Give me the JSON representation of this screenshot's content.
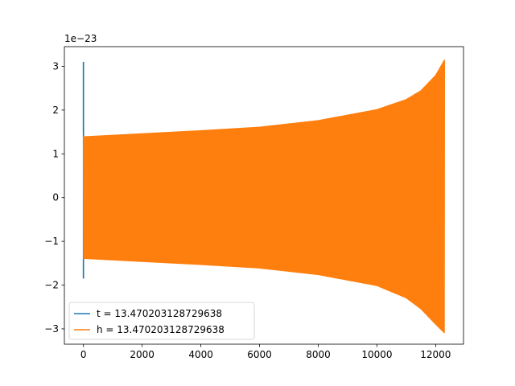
{
  "chart_data": {
    "type": "line",
    "title": "",
    "xlabel": "",
    "ylabel": "",
    "xlim": [
      -650,
      12950
    ],
    "ylim": [
      -3.35,
      3.45
    ],
    "y_offset_label": "1e−23",
    "x_ticks": [
      0,
      2000,
      4000,
      6000,
      8000,
      10000,
      12000
    ],
    "x_tick_labels": [
      "0",
      "2000",
      "4000",
      "6000",
      "8000",
      "10000",
      "12000"
    ],
    "y_ticks": [
      -3,
      -2,
      -1,
      0,
      1,
      2,
      3
    ],
    "y_tick_labels": [
      "−3",
      "−2",
      "−1",
      "0",
      "1",
      "2",
      "3"
    ],
    "grid": false,
    "legend_position": "lower-left",
    "series": [
      {
        "name": "t = 13.470203128729638",
        "color": "#1f77b4",
        "spike_x": 0,
        "spike_range": [
          -1.85,
          3.1
        ]
      },
      {
        "name": "h = 13.470203128729638",
        "color": "#ff7f0e",
        "x_range": [
          0,
          12300
        ],
        "envelope_x": [
          0,
          2000,
          4000,
          6000,
          8000,
          10000,
          11000,
          11500,
          12000,
          12300
        ],
        "envelope_upper": [
          1.4,
          1.47,
          1.54,
          1.62,
          1.77,
          2.02,
          2.25,
          2.45,
          2.8,
          3.15
        ],
        "envelope_lower": [
          -1.4,
          -1.47,
          -1.54,
          -1.62,
          -1.77,
          -2.02,
          -2.3,
          -2.55,
          -2.9,
          -3.1
        ]
      }
    ]
  }
}
